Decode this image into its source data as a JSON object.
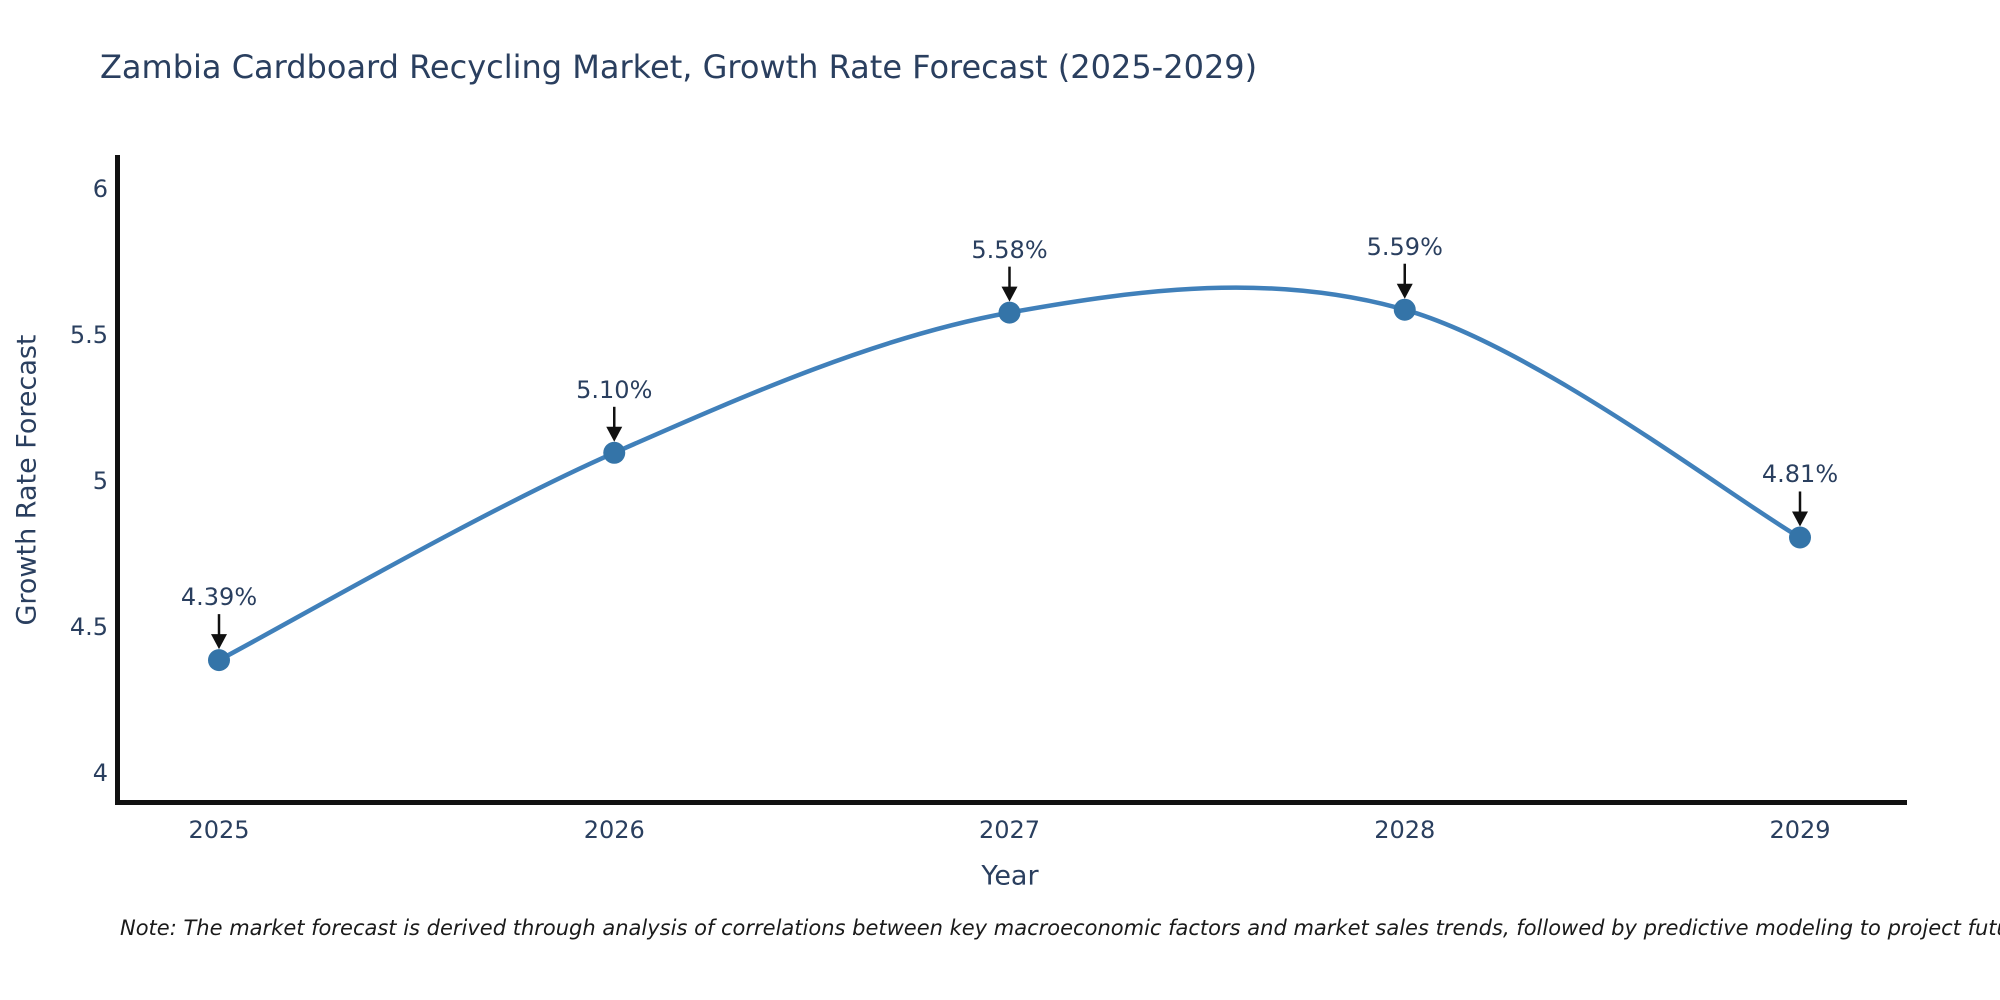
{
  "chart_data": {
    "type": "line",
    "title": "Zambia Cardboard Recycling Market, Growth Rate Forecast (2025-2029)",
    "xlabel": "Year",
    "ylabel": "Growth Rate Forecast",
    "categories": [
      2025,
      2026,
      2027,
      2028,
      2029
    ],
    "values": [
      4.39,
      5.1,
      5.58,
      5.59,
      4.81
    ],
    "annotations": [
      "4.39%",
      "5.10%",
      "5.58%",
      "5.59%",
      "4.81%"
    ],
    "x_ticks": [
      "2025",
      "2026",
      "2027",
      "2028",
      "2029"
    ],
    "y_ticks": [
      "6",
      "5.5",
      "5",
      "4.5",
      "4"
    ],
    "ylim": [
      3.9,
      6.1
    ],
    "grid": false,
    "line_shape": "spline",
    "legend_position": "none",
    "line_color": "#4080ba",
    "marker_color": "#3474a8",
    "arrow_color": "#111111",
    "axis_color": "#111111",
    "text_color": "#2a3f5f"
  },
  "note": "Note: The market forecast is derived through analysis of correlations between key macroeconomic factors and market sales trends, followed by predictive modeling to project future sales"
}
